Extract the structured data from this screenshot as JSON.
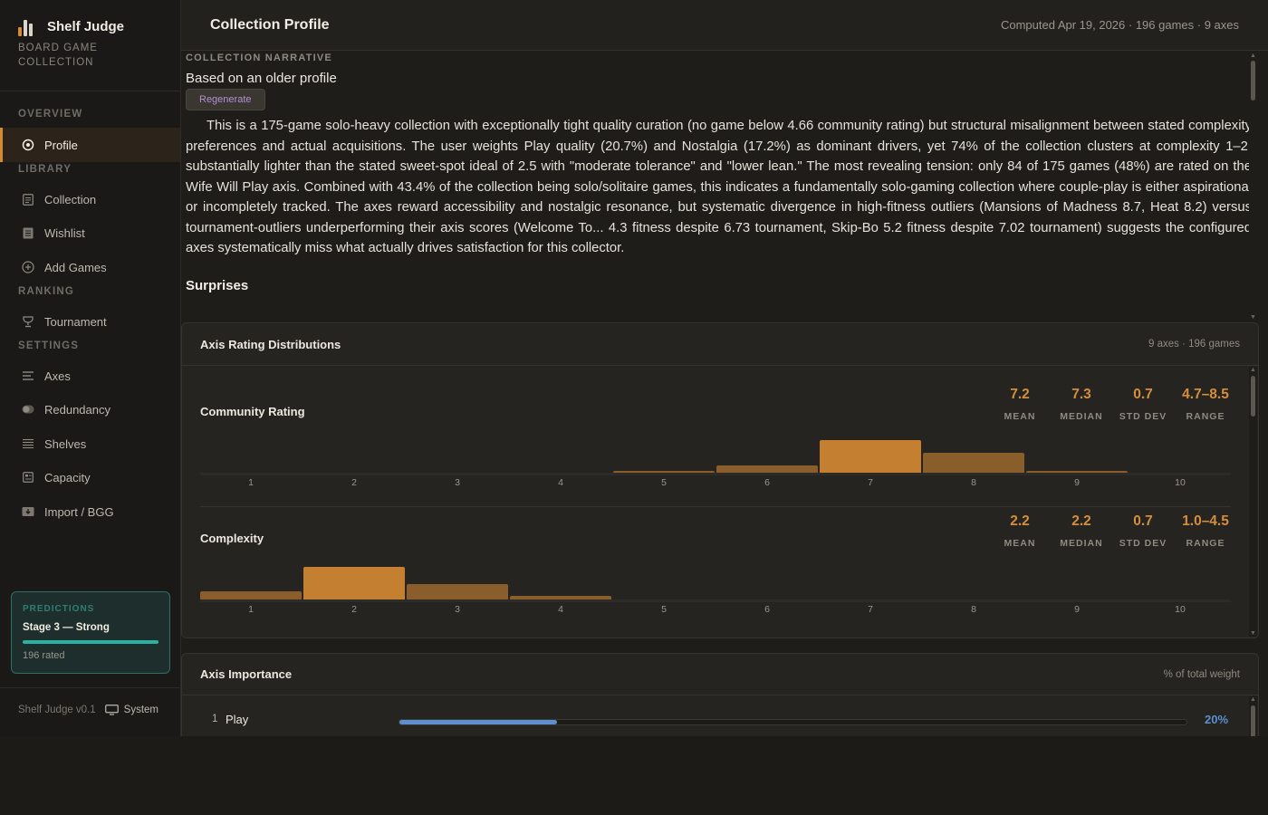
{
  "brand": {
    "name": "Shelf Judge",
    "subtitle": "BOARD GAME COLLECTION"
  },
  "nav": {
    "sections": {
      "overview": "OVERVIEW",
      "library": "LIBRARY",
      "ranking": "RANKING",
      "settings": "SETTINGS"
    },
    "items": {
      "profile": "Profile",
      "collection": "Collection",
      "wishlist": "Wishlist",
      "add_games": "Add Games",
      "tournament": "Tournament",
      "axes": "Axes",
      "redundancy": "Redundancy",
      "shelves": "Shelves",
      "capacity": "Capacity",
      "import": "Import / BGG"
    }
  },
  "predictions": {
    "title": "PREDICTIONS",
    "stage": "Stage 3 — Strong",
    "rated": "196 rated",
    "progress": 1.0
  },
  "footer": {
    "version": "Shelf Judge v0.1",
    "theme": "System"
  },
  "header": {
    "title": "Collection Profile",
    "meta": "Computed Apr 19, 2026 · 196 games · 9 axes"
  },
  "narrative": {
    "label": "COLLECTION NARRATIVE",
    "sub": "Based on an older profile",
    "regenerate": "Regenerate",
    "text": "This is a 175-game solo-heavy collection with exceptionally tight quality curation (no game below 4.66 community rating) but structural misalignment between stated complexity preferences and actual acquisitions. The user weights Play quality (20.7%) and Nostalgia (17.2%) as dominant drivers, yet 74% of the collection clusters at complexity 1–2, substantially lighter than the stated sweet-spot ideal of 2.5 with \"moderate tolerance\" and \"lower lean.\" The most revealing tension: only 84 of 175 games (48%) are rated on the Wife Will Play axis. Combined with 43.4% of the collection being solo/solitaire games, this indicates a fundamentally solo-gaming collection where couple-play is either aspirational or incompletely tracked. The axes reward accessibility and nostalgic resonance, but systematic divergence in high-fitness outliers (Mansions of Madness 8.7, Heat 8.2) versus tournament-outliers underperforming their axis scores (Welcome To... 4.3 fitness despite 6.73 tournament, Skip-Bo 5.2 fitness despite 7.02 tournament) suggests the configured axes systematically miss what actually drives satisfaction for this collector.",
    "surprises_heading": "Surprises"
  },
  "distributions": {
    "title": "Axis Rating Distributions",
    "meta": "9 axes · 196 games",
    "stat_labels": {
      "mean": "MEAN",
      "median": "MEDIAN",
      "std": "STD DEV",
      "range": "RANGE"
    },
    "ticks": [
      "1",
      "2",
      "3",
      "4",
      "5",
      "6",
      "7",
      "8",
      "9",
      "10"
    ],
    "axes": [
      {
        "name": "Community Rating",
        "mean": "7.2",
        "median": "7.3",
        "std": "0.7",
        "range": "4.7–8.5",
        "bins": [
          0,
          0,
          0,
          0,
          0.02,
          0.22,
          1.0,
          0.62,
          0.03,
          0
        ]
      },
      {
        "name": "Complexity",
        "mean": "2.2",
        "median": "2.2",
        "std": "0.7",
        "range": "1.0–4.5",
        "bins": [
          0.24,
          1.0,
          0.46,
          0.1,
          0,
          0,
          0,
          0,
          0,
          0
        ]
      }
    ]
  },
  "importance": {
    "title": "Axis Importance",
    "meta": "% of total weight",
    "rows": [
      {
        "rank": "1",
        "name": "Play",
        "pct": "20%",
        "fraction": 0.2
      }
    ]
  },
  "colors": {
    "accent": "#d48a33",
    "bar_peak": "#c47f30",
    "bar_other": "#8a5e2a",
    "teal": "#2ab1a1",
    "blue": "#5b8fd0"
  }
}
